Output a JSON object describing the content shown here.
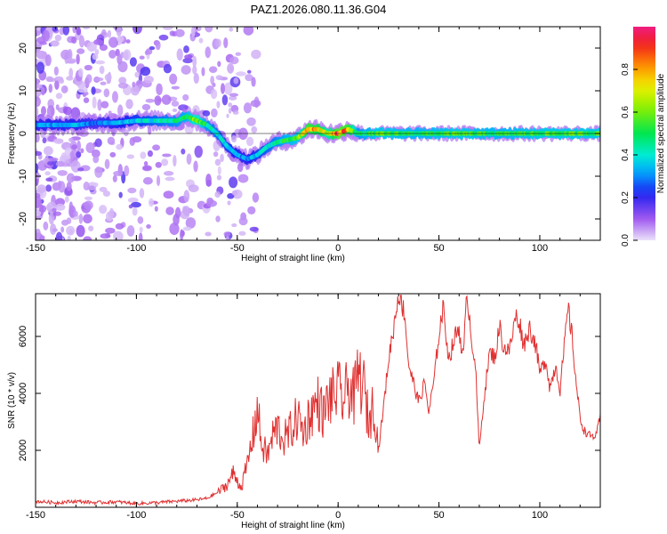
{
  "title": "PAZ1.2026.080.11.36.G04",
  "chart_data": [
    {
      "type": "heatmap",
      "xlabel": "Height of straight line (km)",
      "ylabel": "Frequency (Hz)",
      "xlim": [
        -150,
        130
      ],
      "ylim": [
        -25,
        25
      ],
      "xticks": [
        -150,
        -100,
        -50,
        0,
        50,
        100
      ],
      "yticks": [
        -20,
        -10,
        0,
        10,
        20
      ],
      "colorbar": {
        "label": "Normalized spectral amplitude",
        "ticks": [
          0.0,
          0.2,
          0.4,
          0.6,
          0.8
        ],
        "range": [
          0,
          1
        ]
      },
      "ridge": {
        "x": [
          -150,
          -140,
          -130,
          -120,
          -110,
          -100,
          -90,
          -80,
          -75,
          -70,
          -65,
          -60,
          -55,
          -50,
          -45,
          -40,
          -35,
          -30,
          -25,
          -20,
          -15,
          -10,
          -5,
          0,
          5,
          10,
          20,
          40,
          60,
          80,
          100,
          130
        ],
        "freq": [
          2,
          2,
          2,
          2.5,
          2.5,
          3,
          3,
          3,
          4,
          3,
          2,
          0,
          -3,
          -5,
          -6,
          -5,
          -3,
          -2,
          -1.5,
          -1,
          1,
          1,
          0,
          0,
          1,
          0,
          0,
          0,
          0,
          0,
          0,
          0
        ],
        "amplitude": [
          0.35,
          0.35,
          0.35,
          0.3,
          0.35,
          0.4,
          0.45,
          0.5,
          0.55,
          0.7,
          0.5,
          0.45,
          0.4,
          0.35,
          0.35,
          0.4,
          0.45,
          0.5,
          0.55,
          0.6,
          0.9,
          0.85,
          0.7,
          0.95,
          0.9,
          0.5,
          0.6,
          0.55,
          0.6,
          0.55,
          0.6,
          0.6
        ]
      }
    },
    {
      "type": "line",
      "xlabel": "Height of straight line (km)",
      "ylabel": "SNR (10 * v/v)",
      "xlim": [
        -150,
        130
      ],
      "ylim": [
        0,
        7500
      ],
      "xticks": [
        -150,
        -100,
        -50,
        0,
        50,
        100
      ],
      "yticks": [
        2000,
        4000,
        6000
      ],
      "series": [
        {
          "name": "SNR",
          "color": "#e03030",
          "x": [
            -150,
            -140,
            -130,
            -120,
            -110,
            -100,
            -90,
            -80,
            -70,
            -65,
            -60,
            -55,
            -52,
            -48,
            -45,
            -42,
            -40,
            -38,
            -35,
            -32,
            -30,
            -27,
            -25,
            -22,
            -20,
            -17,
            -15,
            -12,
            -10,
            -7,
            -5,
            -2,
            0,
            3,
            5,
            8,
            10,
            13,
            15,
            18,
            20,
            23,
            25,
            28,
            30,
            33,
            35,
            38,
            40,
            43,
            45,
            48,
            50,
            52,
            55,
            58,
            60,
            62,
            64,
            66,
            68,
            70,
            72,
            75,
            78,
            80,
            82,
            85,
            88,
            90,
            92,
            95,
            98,
            100,
            103,
            105,
            108,
            110,
            112,
            114,
            116,
            118,
            120,
            122,
            125,
            128,
            130
          ],
          "y": [
            200,
            150,
            200,
            150,
            180,
            120,
            150,
            200,
            250,
            300,
            500,
            800,
            1200,
            700,
            1500,
            2600,
            3500,
            2200,
            1800,
            2600,
            2800,
            2400,
            2500,
            2900,
            3200,
            2600,
            3100,
            3500,
            3700,
            3200,
            3800,
            3900,
            4100,
            3700,
            4300,
            3800,
            4700,
            4100,
            3000,
            3700,
            2000,
            3800,
            5200,
            6500,
            7600,
            6800,
            5000,
            4200,
            3700,
            4400,
            3300,
            4700,
            6100,
            7000,
            5200,
            6000,
            6300,
            5200,
            7600,
            6000,
            5100,
            2000,
            3600,
            5400,
            5300,
            6400,
            5600,
            5500,
            6700,
            6500,
            5700,
            6300,
            5700,
            4700,
            5200,
            4200,
            5000,
            4100,
            5500,
            7000,
            6000,
            4400,
            3100,
            2700,
            2500,
            2500,
            3200
          ]
        }
      ]
    }
  ]
}
